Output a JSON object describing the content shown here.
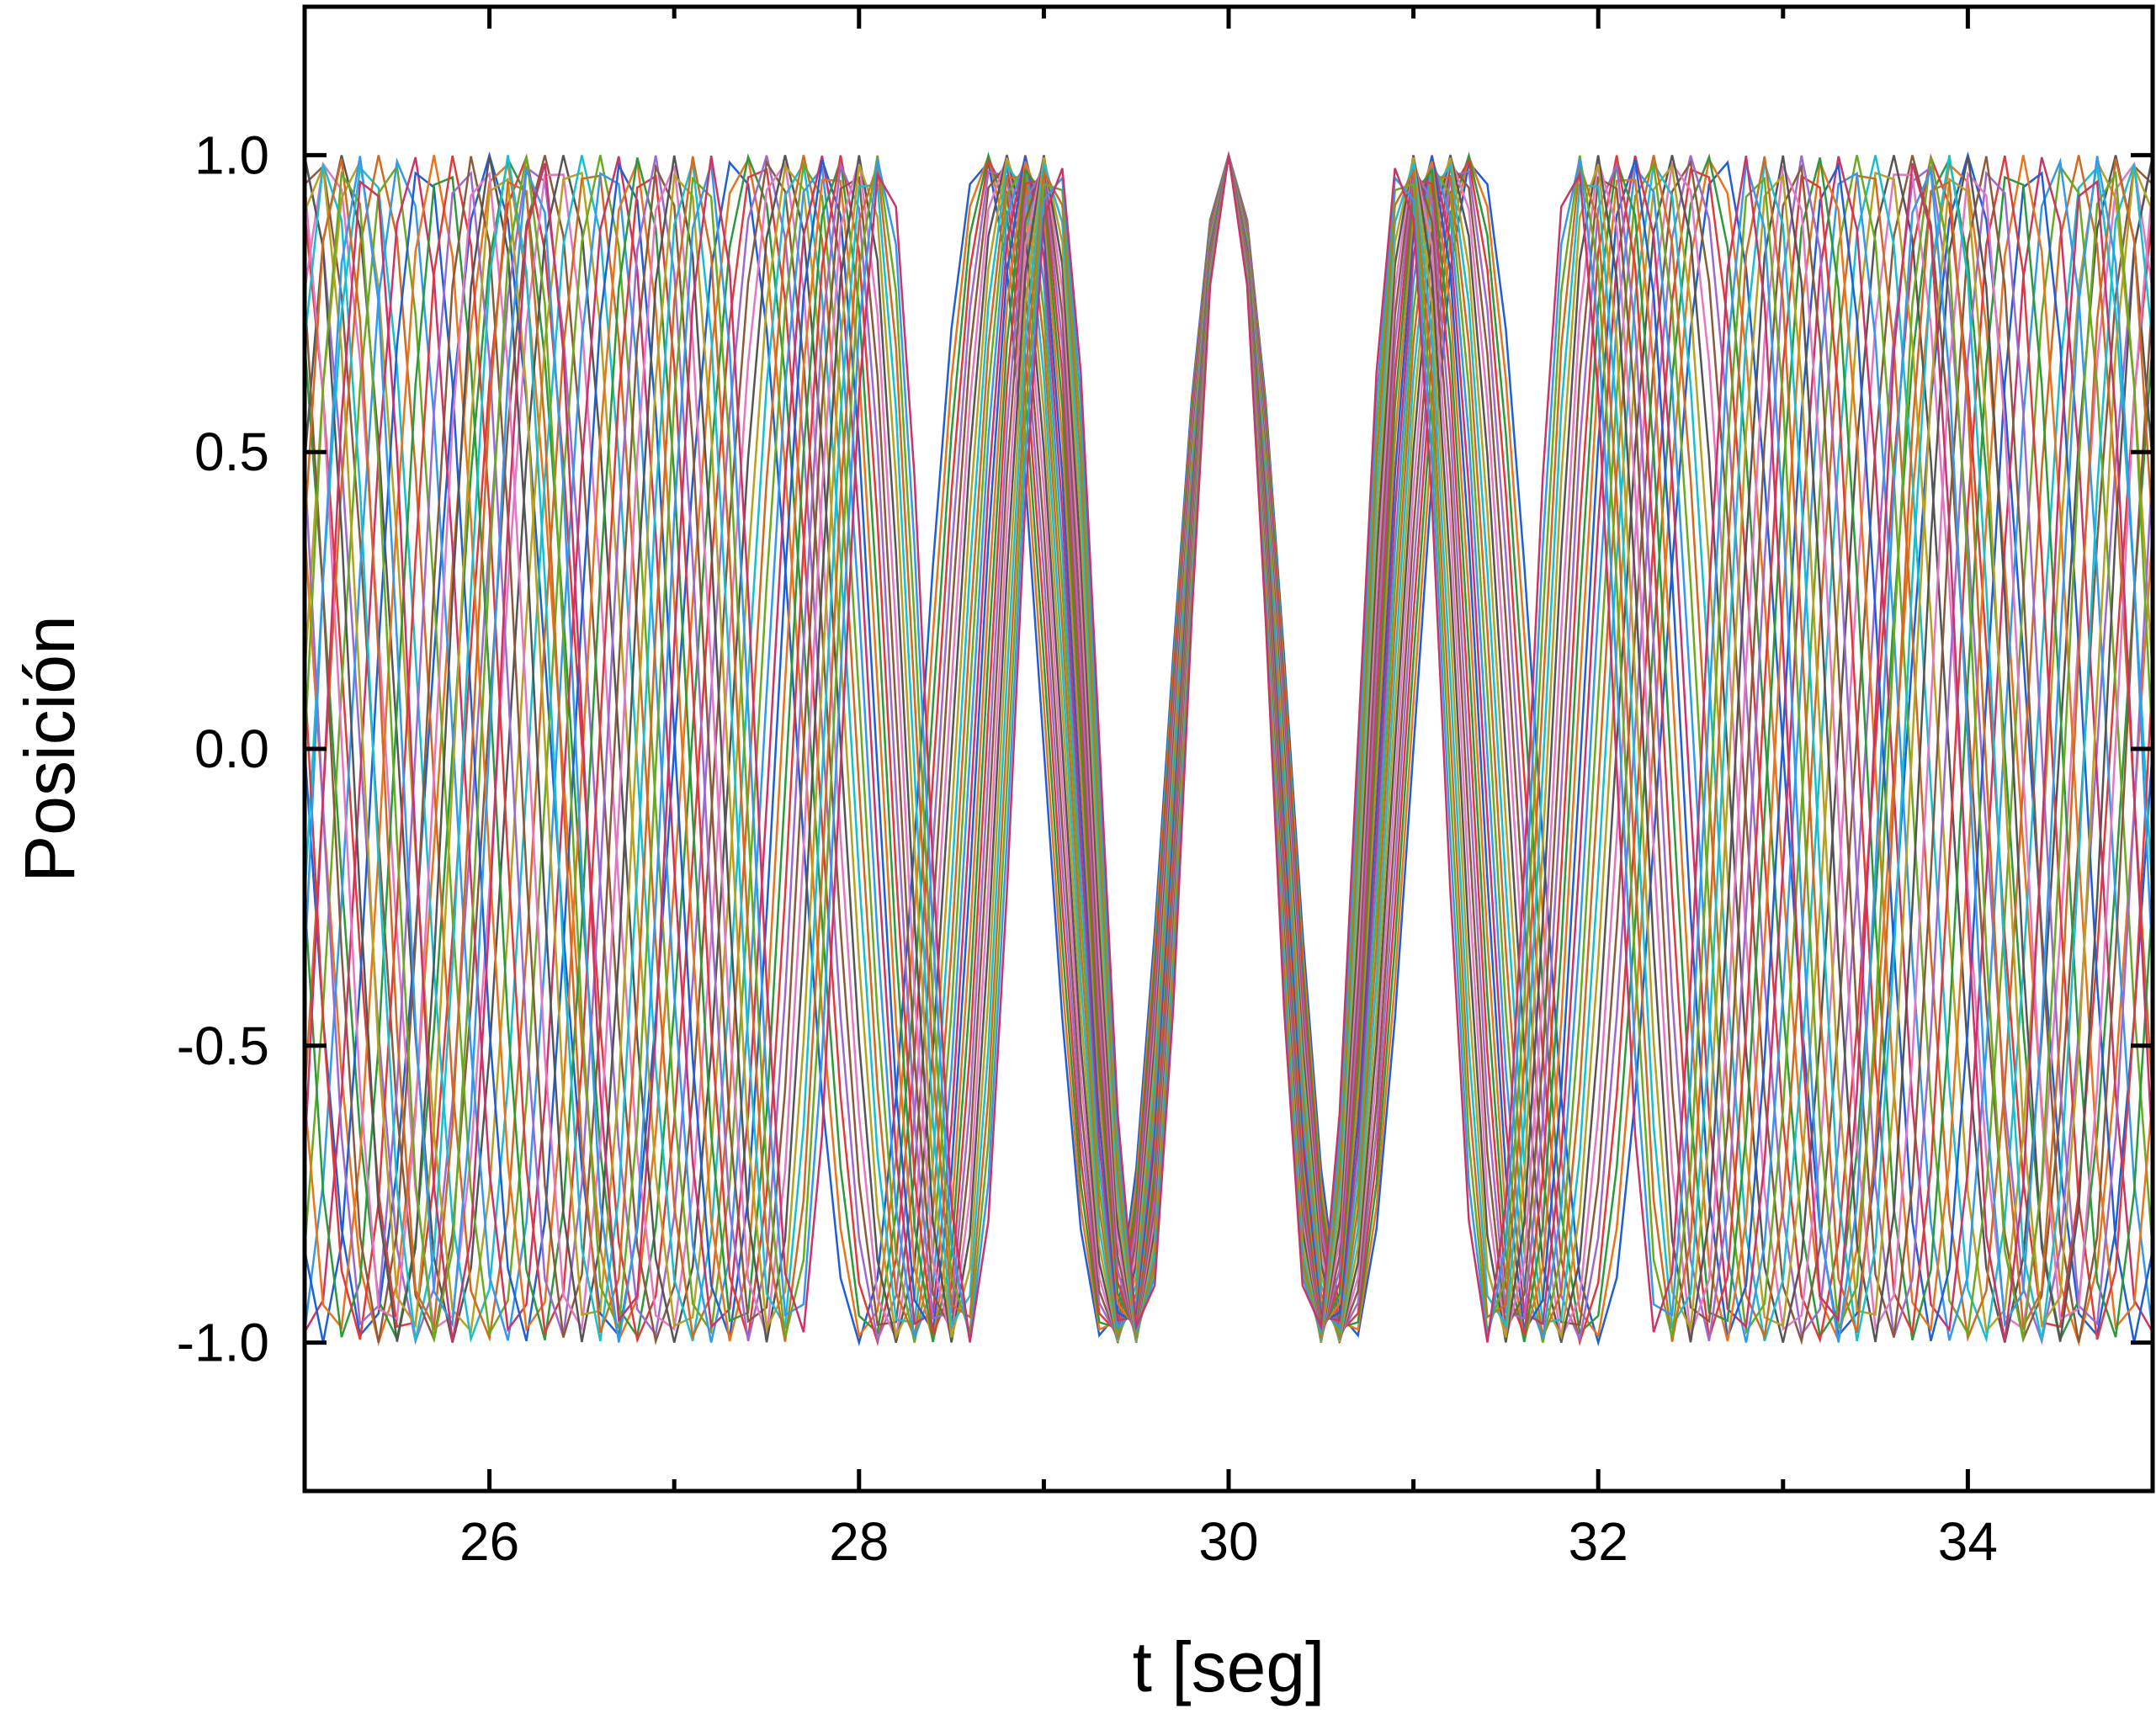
{
  "chart_data": {
    "type": "line",
    "title": "",
    "xlabel": "t [seg]",
    "ylabel": "Posición",
    "xlim": [
      25,
      35
    ],
    "ylim": [
      -1.25,
      1.25
    ],
    "x_ticks": [
      26,
      28,
      30,
      32,
      34
    ],
    "x_tick_labels": [
      "26",
      "28",
      "30",
      "32",
      "34"
    ],
    "x_minor_ticks": [
      27,
      29,
      31,
      33
    ],
    "y_ticks": [
      1.0,
      0.5,
      0.0,
      -0.5,
      -1.0
    ],
    "y_tick_labels": [
      "1.0",
      "0.5",
      "0.0",
      "-0.5",
      "-1.0"
    ],
    "grid": false,
    "legend": "none",
    "sample_step": 0.1,
    "synchronization_time": 30,
    "amplitude": 1.0,
    "series_colors": [
      "#1f5fd6",
      "#e8741c",
      "#2a9a3a",
      "#e03a3a",
      "#9b6ad0",
      "#8b5a3c",
      "#e377c2",
      "#555555",
      "#b8a020",
      "#17becf",
      "#d2691e",
      "#6aaa20",
      "#3399ee",
      "#cc3366"
    ],
    "series": [
      {
        "frequency": 0.75,
        "phase": 0.0
      },
      {
        "frequency": 0.762,
        "phase": 0.0
      },
      {
        "frequency": 0.774,
        "phase": 0.0
      },
      {
        "frequency": 0.786,
        "phase": 0.0
      },
      {
        "frequency": 0.798,
        "phase": 0.0
      },
      {
        "frequency": 0.81,
        "phase": 0.0
      },
      {
        "frequency": 0.822,
        "phase": 0.0
      },
      {
        "frequency": 0.834,
        "phase": 0.0
      },
      {
        "frequency": 0.846,
        "phase": 0.0
      },
      {
        "frequency": 0.858,
        "phase": 0.0
      },
      {
        "frequency": 0.87,
        "phase": 0.0
      },
      {
        "frequency": 0.882,
        "phase": 0.0
      },
      {
        "frequency": 0.894,
        "phase": 0.0
      },
      {
        "frequency": 0.906,
        "phase": 0.0
      },
      {
        "frequency": 0.918,
        "phase": 0.0
      },
      {
        "frequency": 0.93,
        "phase": 0.0
      },
      {
        "frequency": 0.942,
        "phase": 0.0
      },
      {
        "frequency": 0.954,
        "phase": 0.0
      },
      {
        "frequency": 0.966,
        "phase": 0.0
      },
      {
        "frequency": 0.978,
        "phase": 0.0
      },
      {
        "frequency": 0.99,
        "phase": 0.0
      },
      {
        "frequency": 1.002,
        "phase": 0.0
      },
      {
        "frequency": 1.014,
        "phase": 0.0
      },
      {
        "frequency": 1.026,
        "phase": 0.0
      },
      {
        "frequency": 1.038,
        "phase": 0.0
      },
      {
        "frequency": 1.05,
        "phase": 0.0
      },
      {
        "frequency": 1.062,
        "phase": 0.0
      },
      {
        "frequency": 1.074,
        "phase": 0.0
      }
    ]
  }
}
